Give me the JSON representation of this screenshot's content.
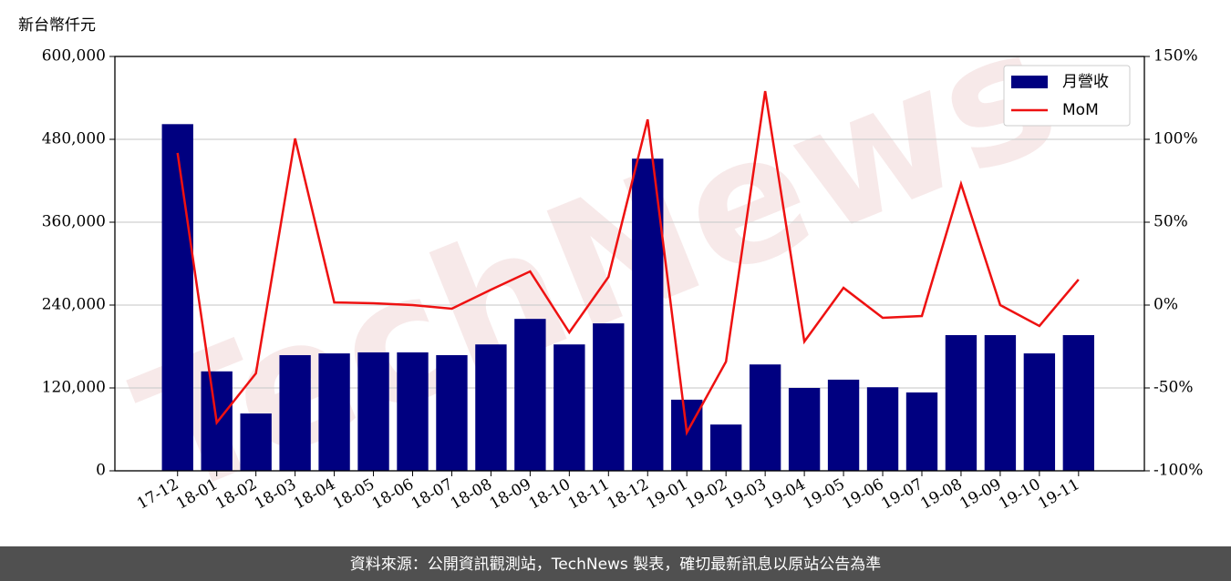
{
  "chart_data": {
    "type": "bar_line",
    "y_label": "新台幣仟元",
    "watermark": "TechNews",
    "footer": "資料來源：公開資訊觀測站，TechNews 製表，確切最新訊息以原站公告為準",
    "categories": [
      "17-12",
      "18-01",
      "18-02",
      "18-03",
      "18-04",
      "18-05",
      "18-06",
      "18-07",
      "18-08",
      "18-09",
      "18-10",
      "18-11",
      "18-12",
      "19-01",
      "19-02",
      "19-03",
      "19-04",
      "19-05",
      "19-06",
      "19-07",
      "19-08",
      "19-09",
      "19-10",
      "19-11"
    ],
    "series": [
      {
        "name": "月營收",
        "type": "bar",
        "color": "#000080",
        "values": [
          502000,
          144000,
          83000,
          167500,
          170000,
          171500,
          171500,
          167500,
          183000,
          220000,
          183000,
          213500,
          452000,
          103000,
          67000,
          154000,
          120000,
          132000,
          121000,
          113500,
          196500,
          196500,
          170000,
          196500
        ]
      },
      {
        "name": "MoM",
        "type": "line",
        "axis": "y2",
        "color": "#ee1111",
        "values": [
          91.8,
          -70.9,
          -41.2,
          100.5,
          1.6,
          1.1,
          0,
          -2.2,
          9.3,
          20.3,
          -16.5,
          17,
          112,
          -76.9,
          -34.1,
          129.1,
          -22,
          10.4,
          -7.7,
          -6.6,
          73.1,
          0,
          -12.6,
          15.4
        ]
      }
    ],
    "ylim": [
      0,
      600000
    ],
    "yticks": [
      0,
      {
        "value": 120000,
        "label": "120,000"
      },
      {
        "value": 240000,
        "label": "240,000"
      },
      {
        "value": 360000,
        "label": "360,000"
      },
      {
        "value": 480000,
        "label": "480,000"
      },
      {
        "value": 600000,
        "label": "600,000"
      }
    ],
    "y2lim": [
      -100,
      150
    ],
    "y2ticks": [
      {
        "value": -100,
        "label": "-100%"
      },
      {
        "value": -50,
        "label": "-50%"
      },
      {
        "value": 0,
        "label": "0%"
      },
      {
        "value": 50,
        "label": "50%"
      },
      {
        "value": 100,
        "label": "100%"
      },
      {
        "value": 150,
        "label": "150%"
      }
    ],
    "grid": true,
    "legend": "upper right"
  }
}
